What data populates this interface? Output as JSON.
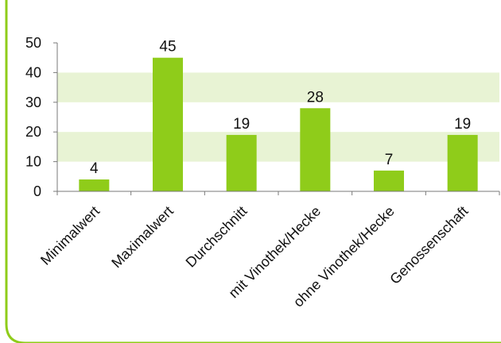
{
  "chart_data": {
    "type": "bar",
    "categories": [
      "Minimalwert",
      "Maximalwert",
      "Durchschnitt",
      "mit Vinothek/Hecke",
      "ohne Vinothek/Hecke",
      "Genossenschaft"
    ],
    "values": [
      4,
      45,
      19,
      28,
      7,
      19
    ],
    "data_labels": [
      "4",
      "45",
      "19",
      "28",
      "7",
      "19"
    ],
    "title": "",
    "xlabel": "",
    "ylabel": "",
    "ylim": [
      0,
      50
    ],
    "yticks": [
      0,
      10,
      20,
      30,
      40,
      50
    ],
    "ytick_labels": [
      "0",
      "10",
      "20",
      "30",
      "40",
      "50"
    ],
    "bands": [
      [
        10,
        20
      ],
      [
        30,
        40
      ]
    ],
    "grid": false,
    "legend": "none",
    "colors": {
      "bar": "#8fcc1a",
      "band": "#e8f3d4",
      "axis": "#7a7a7a",
      "frame": "#8fcc1a"
    }
  }
}
